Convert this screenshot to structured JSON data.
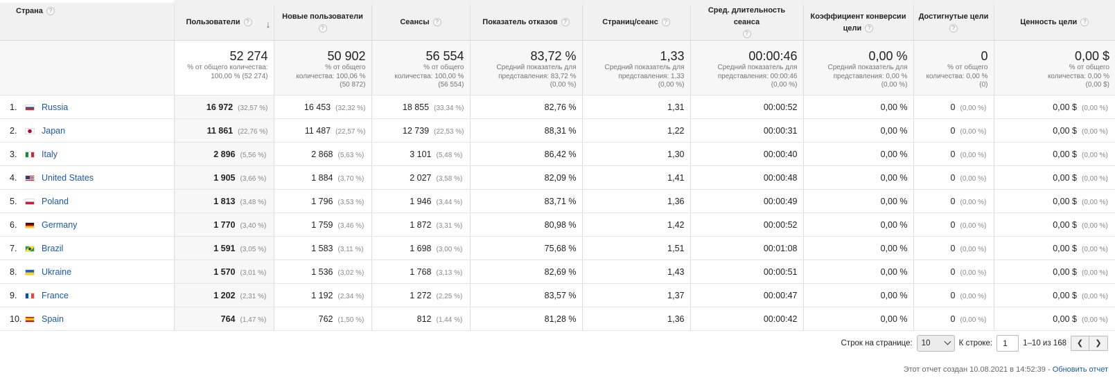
{
  "header": {
    "country": "Страна",
    "columns": [
      "Пользователи",
      "Новые пользователи",
      "Сеансы",
      "Показатель отказов",
      "Страниц/сеанс",
      "Сред. длительность сеанса",
      "Коэффициент конверсии цели",
      "Достигнутые цели",
      "Ценность цели"
    ],
    "help": "?",
    "sort_icon": "↓"
  },
  "totals": [
    {
      "big": "52 274",
      "sub": [
        "% от общего количества:",
        "100,00 % (52 274)"
      ]
    },
    {
      "big": "50 902",
      "sub": [
        "% от общего",
        "количества: 100,06 %",
        "(50 872)"
      ]
    },
    {
      "big": "56 554",
      "sub": [
        "% от общего",
        "количества: 100,00 %",
        "(56 554)"
      ]
    },
    {
      "big": "83,72 %",
      "sub": [
        "Средний показатель для",
        "представления: 83,72 %",
        "(0,00 %)"
      ]
    },
    {
      "big": "1,33",
      "sub": [
        "Средний показатель для",
        "представления: 1,33",
        "(0,00 %)"
      ]
    },
    {
      "big": "00:00:46",
      "sub": [
        "Средний показатель для",
        "представления: 00:00:46",
        "(0,00 %)"
      ]
    },
    {
      "big": "0,00 %",
      "sub": [
        "Средний показатель для",
        "представления: 0,00 %",
        "(0,00 %)"
      ]
    },
    {
      "big": "0",
      "sub": [
        "% от общего",
        "количества: 0,00 %",
        "(0)"
      ]
    },
    {
      "big": "0,00 $",
      "sub": [
        "% от общего",
        "количества: 0,00 %",
        "(0,00 $)"
      ]
    }
  ],
  "rows": [
    {
      "idx": "1.",
      "country": "Russia",
      "flag": [
        "#ffffff",
        "#1f4fb5",
        "#d52b1e"
      ],
      "users": "16 972",
      "users_pct": "(32,57 %)",
      "new": "16 453",
      "new_pct": "(32,32 %)",
      "sessions": "18 855",
      "sessions_pct": "(33,34 %)",
      "bounce": "82,76 %",
      "pages": "1,31",
      "duration": "00:00:52",
      "conv": "0,00 %",
      "goals": "0",
      "goals_pct": "(0,00 %)",
      "value": "0,00 $",
      "value_pct": "(0,00 %)"
    },
    {
      "idx": "2.",
      "country": "Japan",
      "flag": [
        "#ffffff",
        "#ffffff",
        "#ffffff"
      ],
      "users": "11 861",
      "users_pct": "(22,76 %)",
      "new": "11 487",
      "new_pct": "(22,57 %)",
      "sessions": "12 739",
      "sessions_pct": "(22,53 %)",
      "bounce": "88,31 %",
      "pages": "1,22",
      "duration": "00:00:31",
      "conv": "0,00 %",
      "goals": "0",
      "goals_pct": "(0,00 %)",
      "value": "0,00 $",
      "value_pct": "(0,00 %)"
    },
    {
      "idx": "3.",
      "country": "Italy",
      "flag": [
        "#1c8a3c",
        "#ffffff",
        "#cf2734"
      ],
      "users": "2 896",
      "users_pct": "(5,56 %)",
      "new": "2 868",
      "new_pct": "(5,63 %)",
      "sessions": "3 101",
      "sessions_pct": "(5,48 %)",
      "bounce": "86,42 %",
      "pages": "1,30",
      "duration": "00:00:40",
      "conv": "0,00 %",
      "goals": "0",
      "goals_pct": "(0,00 %)",
      "value": "0,00 $",
      "value_pct": "(0,00 %)"
    },
    {
      "idx": "4.",
      "country": "United States",
      "flag": [
        "#b22234",
        "#ffffff",
        "#b22234"
      ],
      "users": "1 905",
      "users_pct": "(3,66 %)",
      "new": "1 884",
      "new_pct": "(3,70 %)",
      "sessions": "2 027",
      "sessions_pct": "(3,58 %)",
      "bounce": "82,09 %",
      "pages": "1,41",
      "duration": "00:00:48",
      "conv": "0,00 %",
      "goals": "0",
      "goals_pct": "(0,00 %)",
      "value": "0,00 $",
      "value_pct": "(0,00 %)"
    },
    {
      "idx": "5.",
      "country": "Poland",
      "flag": [
        "#ffffff",
        "#ffffff",
        "#dc143c"
      ],
      "users": "1 813",
      "users_pct": "(3,48 %)",
      "new": "1 796",
      "new_pct": "(3,53 %)",
      "sessions": "1 946",
      "sessions_pct": "(3,44 %)",
      "bounce": "83,71 %",
      "pages": "1,36",
      "duration": "00:00:49",
      "conv": "0,00 %",
      "goals": "0",
      "goals_pct": "(0,00 %)",
      "value": "0,00 $",
      "value_pct": "(0,00 %)"
    },
    {
      "idx": "6.",
      "country": "Germany",
      "flag": [
        "#1a1a1a",
        "#dd0000",
        "#ffce00"
      ],
      "users": "1 770",
      "users_pct": "(3,40 %)",
      "new": "1 759",
      "new_pct": "(3,46 %)",
      "sessions": "1 872",
      "sessions_pct": "(3,31 %)",
      "bounce": "80,98 %",
      "pages": "1,42",
      "duration": "00:00:52",
      "conv": "0,00 %",
      "goals": "0",
      "goals_pct": "(0,00 %)",
      "value": "0,00 $",
      "value_pct": "(0,00 %)"
    },
    {
      "idx": "7.",
      "country": "Brazil",
      "flag": [
        "#229e45",
        "#f8e509",
        "#229e45"
      ],
      "users": "1 591",
      "users_pct": "(3,05 %)",
      "new": "1 583",
      "new_pct": "(3,11 %)",
      "sessions": "1 698",
      "sessions_pct": "(3,00 %)",
      "bounce": "75,68 %",
      "pages": "1,51",
      "duration": "00:01:08",
      "conv": "0,00 %",
      "goals": "0",
      "goals_pct": "(0,00 %)",
      "value": "0,00 $",
      "value_pct": "(0,00 %)"
    },
    {
      "idx": "8.",
      "country": "Ukraine",
      "flag": [
        "#1f5fbf",
        "#1f5fbf",
        "#ffd500"
      ],
      "users": "1 570",
      "users_pct": "(3,01 %)",
      "new": "1 536",
      "new_pct": "(3,02 %)",
      "sessions": "1 768",
      "sessions_pct": "(3,13 %)",
      "bounce": "82,69 %",
      "pages": "1,43",
      "duration": "00:00:51",
      "conv": "0,00 %",
      "goals": "0",
      "goals_pct": "(0,00 %)",
      "value": "0,00 $",
      "value_pct": "(0,00 %)"
    },
    {
      "idx": "9.",
      "country": "France",
      "flag": [
        "#0055a4",
        "#ffffff",
        "#ef4135"
      ],
      "users": "1 202",
      "users_pct": "(2,31 %)",
      "new": "1 192",
      "new_pct": "(2,34 %)",
      "sessions": "1 272",
      "sessions_pct": "(2,25 %)",
      "bounce": "83,57 %",
      "pages": "1,37",
      "duration": "00:00:47",
      "conv": "0,00 %",
      "goals": "0",
      "goals_pct": "(0,00 %)",
      "value": "0,00 $",
      "value_pct": "(0,00 %)"
    },
    {
      "idx": "10.",
      "country": "Spain",
      "flag": [
        "#c60b1e",
        "#ffc400",
        "#c60b1e"
      ],
      "users": "764",
      "users_pct": "(1,47 %)",
      "new": "762",
      "new_pct": "(1,50 %)",
      "sessions": "812",
      "sessions_pct": "(1,44 %)",
      "bounce": "81,28 %",
      "pages": "1,36",
      "duration": "00:00:42",
      "conv": "0,00 %",
      "goals": "0",
      "goals_pct": "(0,00 %)",
      "value": "0,00 $",
      "value_pct": "(0,00 %)"
    }
  ],
  "pager": {
    "rows_label": "Строк на странице:",
    "rows_value": "10",
    "goto_label": "К строке:",
    "goto_value": "1",
    "range": "1–10 из 168",
    "prev": "❮",
    "next": "❯"
  },
  "footer": {
    "created": "Этот отчет создан 10.08.2021 в 14:52:39 - ",
    "refresh": "Обновить отчет"
  }
}
